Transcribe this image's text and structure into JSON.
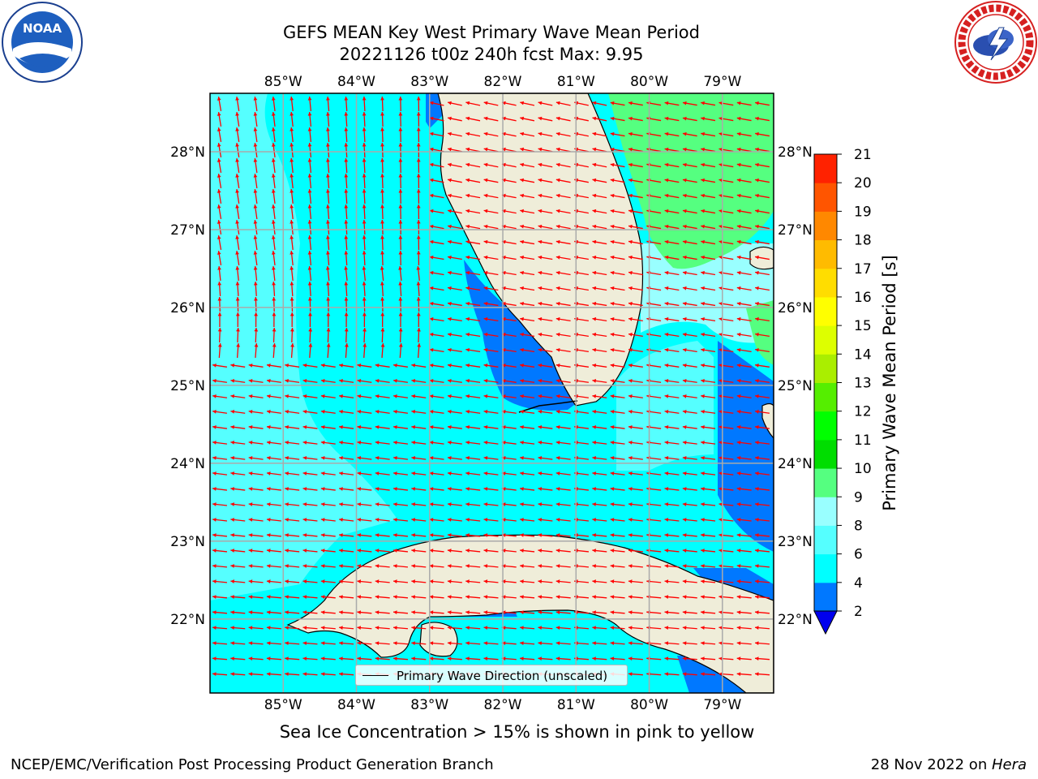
{
  "title": {
    "line1": "GEFS MEAN Key West Primary Wave Mean Period",
    "line2": "20221126 t00z 240h fcst   Max: 9.95"
  },
  "logos": {
    "left": "noaa-logo",
    "left_text": "NOAA",
    "right": "national-weather-service-logo"
  },
  "map": {
    "lon_ticks": [
      "85°W",
      "84°W",
      "83°W",
      "82°W",
      "81°W",
      "80°W",
      "79°W"
    ],
    "lat_ticks": [
      "28°N",
      "27°N",
      "26°N",
      "25°N",
      "24°N",
      "23°N",
      "22°N"
    ],
    "lon_values": [
      -85,
      -84,
      -83,
      -82,
      -81,
      -80,
      -79
    ],
    "lat_values": [
      28,
      27,
      26,
      25,
      24,
      23,
      22
    ],
    "extent": {
      "lon": [
        -86,
        -78.3
      ],
      "lat": [
        21.05,
        28.75
      ]
    },
    "ocean_fill": "#00ffff",
    "land_fill": "#efedd9",
    "arrow_color": "#ff0000",
    "legend": "Primary Wave Direction (unscaled)"
  },
  "colorbar": {
    "label": "Primary Wave Mean Period [s]",
    "ticks": [
      "2",
      "4",
      "6",
      "8",
      "9",
      "10",
      "11",
      "12",
      "13",
      "14",
      "15",
      "16",
      "17",
      "18",
      "19",
      "20",
      "21"
    ],
    "bounds": [
      2,
      4,
      6,
      8,
      9,
      10,
      11,
      12,
      13,
      14,
      15,
      16,
      17,
      18,
      19,
      20,
      21
    ],
    "colors": [
      "#0078ff",
      "#00ffff",
      "#55ffff",
      "#99ffff",
      "#55ff80",
      "#00dd00",
      "#00ff00",
      "#55ee00",
      "#aaee00",
      "#ddff00",
      "#ffff00",
      "#ffdd00",
      "#ffbb00",
      "#ff8800",
      "#ff5500",
      "#ff2200"
    ],
    "under_color": "#0000ee"
  },
  "notes": {
    "sea_ice": "Sea Ice Concentration > 15% is shown in pink to yellow"
  },
  "footer": {
    "left": "NCEP/EMC/Verification Post Processing Product Generation Branch",
    "date": "28 Nov 2022 on ",
    "machine": "Hera"
  }
}
